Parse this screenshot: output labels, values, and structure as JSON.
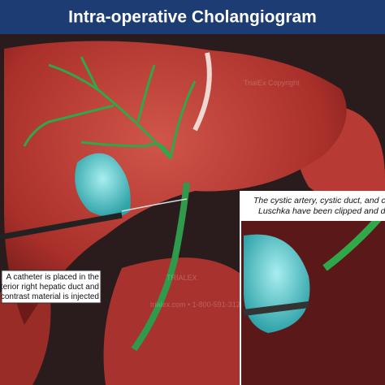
{
  "header": {
    "title": "Intra-operative Cholangiogram"
  },
  "callouts": [
    {
      "lines": [
        "A catheter is placed in the",
        "anterior right hepatic duct and",
        "contrast material is injected"
      ]
    },
    {
      "lines": [
        "The cystic artery, cystic duct, and c",
        "Luschka have been clipped and di"
      ]
    }
  ],
  "watermarks": [
    "TrialEx Copyright",
    "TRIALEX",
    "trialex.com • 1-800-591-312"
  ]
}
